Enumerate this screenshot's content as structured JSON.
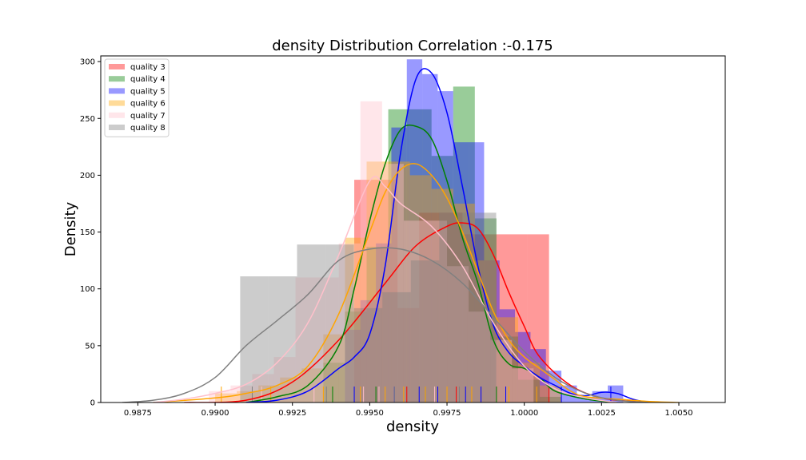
{
  "chart_data": {
    "type": "histogram",
    "title": "density Distribution Correlation :-0.175",
    "xlabel": "density",
    "ylabel": "Density",
    "xlim": [
      0.9863,
      1.0065
    ],
    "ylim": [
      0,
      305
    ],
    "xticks": [
      {
        "value": 0.9875,
        "label": "0.9875"
      },
      {
        "value": 0.99,
        "label": "0.9900"
      },
      {
        "value": 0.9925,
        "label": "0.9925"
      },
      {
        "value": 0.995,
        "label": "0.9950"
      },
      {
        "value": 0.9975,
        "label": "0.9975"
      },
      {
        "value": 1.0,
        "label": "1.0000"
      },
      {
        "value": 1.0025,
        "label": "1.0025"
      },
      {
        "value": 1.005,
        "label": "1.0050"
      }
    ],
    "yticks": [
      {
        "value": 0,
        "label": "0"
      },
      {
        "value": 50,
        "label": "50"
      },
      {
        "value": 100,
        "label": "100"
      },
      {
        "value": 150,
        "label": "150"
      },
      {
        "value": 200,
        "label": "200"
      },
      {
        "value": 250,
        "label": "250"
      },
      {
        "value": 300,
        "label": "300"
      }
    ],
    "grid": false,
    "legend_position": "top-left",
    "series": [
      {
        "name": "quality 3",
        "color": "#ff0000",
        "bin_edges": [
          0.9945,
          0.9952,
          0.9959,
          0.9966,
          0.9973,
          0.998,
          0.9987,
          0.9994,
          1.0001,
          1.0008
        ],
        "heights": [
          196,
          196,
          83,
          167,
          167,
          148,
          148,
          148,
          148
        ],
        "kde": [
          [
            0.989,
            0
          ],
          [
            0.991,
            2
          ],
          [
            0.9925,
            18
          ],
          [
            0.994,
            55
          ],
          [
            0.9955,
            105
          ],
          [
            0.9965,
            138
          ],
          [
            0.9975,
            155
          ],
          [
            0.998,
            158
          ],
          [
            0.9985,
            153
          ],
          [
            0.999,
            130
          ],
          [
            0.9995,
            97
          ],
          [
            1.0,
            67
          ],
          [
            1.0005,
            40
          ],
          [
            1.0015,
            15
          ],
          [
            1.0025,
            4
          ],
          [
            1.0035,
            1
          ],
          [
            1.0045,
            0
          ]
        ],
        "rug": [
          0.9962,
          0.9978,
          1.0008
        ]
      },
      {
        "name": "quality 4",
        "color": "#008000",
        "bin_edges": [
          0.9935,
          0.9942,
          0.9949,
          0.9956,
          0.9963,
          0.997,
          0.9977,
          0.9984,
          0.9991,
          0.9998,
          1.0005,
          1.0012
        ],
        "heights": [
          35,
          80,
          137,
          258,
          258,
          217,
          278,
          162,
          58,
          20,
          5
        ],
        "kde": [
          [
            0.991,
            0
          ],
          [
            0.992,
            5
          ],
          [
            0.993,
            15
          ],
          [
            0.994,
            50
          ],
          [
            0.9945,
            100
          ],
          [
            0.995,
            160
          ],
          [
            0.9955,
            210
          ],
          [
            0.996,
            240
          ],
          [
            0.9965,
            243
          ],
          [
            0.997,
            232
          ],
          [
            0.9975,
            195
          ],
          [
            0.998,
            145
          ],
          [
            0.9985,
            105
          ],
          [
            0.999,
            55
          ],
          [
            0.9995,
            34
          ],
          [
            1.0,
            30
          ],
          [
            1.0005,
            22
          ],
          [
            1.001,
            10
          ],
          [
            1.002,
            3
          ],
          [
            1.003,
            0
          ]
        ],
        "rug": [
          0.9938,
          0.9952,
          0.9968,
          0.9991
        ]
      },
      {
        "name": "quality 5",
        "color": "#0000ff",
        "bin_edges": [
          0.9942,
          0.9947,
          0.9952,
          0.9957,
          0.9962,
          0.9967,
          0.9972,
          0.9977,
          0.9982,
          0.9987,
          0.9992,
          0.9997,
          1.0002,
          1.0007,
          1.0012,
          1.0017,
          1.0022,
          1.0027,
          1.0032
        ],
        "heights": [
          64,
          90,
          140,
          242,
          302,
          289,
          274,
          229,
          229,
          125,
          82,
          62,
          47,
          28,
          15,
          5,
          10,
          15
        ],
        "kde": [
          [
            0.991,
            0
          ],
          [
            0.992,
            2
          ],
          [
            0.993,
            10
          ],
          [
            0.994,
            30
          ],
          [
            0.9945,
            40
          ],
          [
            0.995,
            60
          ],
          [
            0.9955,
            120
          ],
          [
            0.996,
            220
          ],
          [
            0.9965,
            285
          ],
          [
            0.997,
            290
          ],
          [
            0.9975,
            255
          ],
          [
            0.998,
            190
          ],
          [
            0.9985,
            120
          ],
          [
            0.999,
            68
          ],
          [
            0.9995,
            44
          ],
          [
            1.0,
            32
          ],
          [
            1.0005,
            22
          ],
          [
            1.001,
            15
          ],
          [
            1.0015,
            8
          ],
          [
            1.002,
            6
          ],
          [
            1.0025,
            9
          ],
          [
            1.003,
            8
          ],
          [
            1.0035,
            3
          ],
          [
            1.004,
            0
          ]
        ],
        "rug": [
          0.9945,
          0.9958,
          0.9966,
          0.9972,
          0.9981,
          0.9986,
          0.9994,
          1.0012,
          1.0028
        ]
      },
      {
        "name": "quality 6",
        "color": "#ffa500",
        "bin_edges": [
          0.99,
          0.9907,
          0.9914,
          0.9921,
          0.9928,
          0.9935,
          0.9942,
          0.9949,
          0.9956,
          0.9963,
          0.997,
          0.9977,
          0.9984,
          0.9991,
          0.9998,
          1.0005,
          1.0012
        ],
        "heights": [
          8,
          10,
          15,
          22,
          30,
          60,
          145,
          212,
          212,
          200,
          188,
          175,
          125,
          75,
          35,
          15
        ],
        "kde": [
          [
            0.988,
            0
          ],
          [
            0.99,
            4
          ],
          [
            0.991,
            8
          ],
          [
            0.992,
            15
          ],
          [
            0.993,
            32
          ],
          [
            0.994,
            78
          ],
          [
            0.995,
            150
          ],
          [
            0.9955,
            185
          ],
          [
            0.996,
            205
          ],
          [
            0.9965,
            210
          ],
          [
            0.997,
            200
          ],
          [
            0.9975,
            180
          ],
          [
            0.998,
            150
          ],
          [
            0.9985,
            115
          ],
          [
            0.999,
            80
          ],
          [
            0.9995,
            55
          ],
          [
            1.0,
            40
          ],
          [
            1.0005,
            30
          ],
          [
            1.001,
            20
          ],
          [
            1.0015,
            10
          ],
          [
            1.002,
            5
          ],
          [
            1.003,
            3
          ],
          [
            1.004,
            1
          ],
          [
            1.005,
            0
          ]
        ],
        "rug": [
          0.9902,
          0.9918,
          0.9935,
          0.9947,
          0.9955,
          0.9961,
          0.9968,
          0.9975,
          0.9983,
          0.9995,
          1.0004
        ]
      },
      {
        "name": "quality 7",
        "color": "#ffc0cb",
        "bin_edges": [
          0.9898,
          0.9905,
          0.9912,
          0.9919,
          0.9926,
          0.9933,
          0.994,
          0.9947,
          0.9954,
          0.9961,
          0.9968,
          0.9975,
          0.9982,
          0.9989,
          0.9996,
          1.0003
        ],
        "heights": [
          10,
          15,
          25,
          40,
          110,
          110,
          140,
          265,
          210,
          160,
          160,
          120,
          80,
          55,
          30
        ],
        "kde": [
          [
            0.988,
            0
          ],
          [
            0.989,
            3
          ],
          [
            0.99,
            8
          ],
          [
            0.991,
            16
          ],
          [
            0.992,
            35
          ],
          [
            0.993,
            70
          ],
          [
            0.994,
            130
          ],
          [
            0.995,
            195
          ],
          [
            0.9955,
            190
          ],
          [
            0.996,
            175
          ],
          [
            0.997,
            155
          ],
          [
            0.998,
            120
          ],
          [
            0.999,
            70
          ],
          [
            1.0,
            32
          ],
          [
            1.001,
            12
          ],
          [
            1.002,
            4
          ],
          [
            1.003,
            0
          ]
        ],
        "rug": [
          0.9915,
          0.9932,
          0.9948,
          0.9953,
          0.9971
        ]
      },
      {
        "name": "quality 8",
        "color": "#808080",
        "bin_edges": [
          0.99081,
          0.99173,
          0.99265,
          0.99357,
          0.99449,
          0.99541,
          0.99633,
          0.99725,
          0.99817,
          0.99909
        ],
        "heights": [
          111,
          111,
          139,
          139,
          83,
          97,
          125,
          167,
          167
        ],
        "kde": [
          [
            0.987,
            0
          ],
          [
            0.988,
            2
          ],
          [
            0.989,
            8
          ],
          [
            0.99,
            22
          ],
          [
            0.991,
            50
          ],
          [
            0.992,
            72
          ],
          [
            0.993,
            95
          ],
          [
            0.994,
            125
          ],
          [
            0.995,
            135
          ],
          [
            0.996,
            135
          ],
          [
            0.997,
            125
          ],
          [
            0.998,
            105
          ],
          [
            0.999,
            75
          ],
          [
            1.0,
            45
          ],
          [
            1.001,
            22
          ],
          [
            1.002,
            8
          ],
          [
            1.003,
            2
          ],
          [
            1.004,
            0
          ]
        ],
        "rug": [
          0.9912,
          0.9936,
          0.9958,
          0.9979
        ]
      }
    ]
  }
}
